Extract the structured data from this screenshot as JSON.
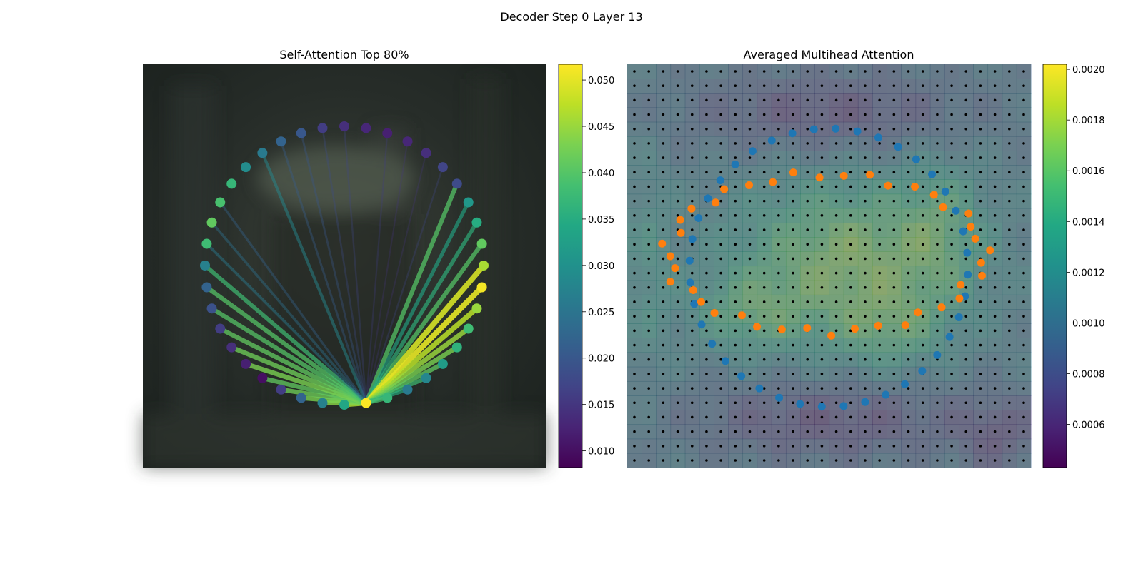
{
  "figure": {
    "title": "Decoder Step 0 Layer 13"
  },
  "chart_data": [
    {
      "type": "scatter",
      "title": "Self-Attention Top 80%",
      "description_points": "40 nodes arranged on a ring; edges drawn from node 9 to the nodes it attends to, coloured and weighted by attention value",
      "colorbar": {
        "min": 0.0082,
        "max": 0.0517,
        "ticks": [
          "0.010",
          "0.015",
          "0.020",
          "0.025",
          "0.030",
          "0.035",
          "0.040",
          "0.045",
          "0.050"
        ],
        "tick_values": [
          0.01,
          0.015,
          0.02,
          0.025,
          0.03,
          0.035,
          0.04,
          0.045,
          0.05
        ],
        "colormap": "viridis"
      },
      "node_values": [
        0.046,
        0.051,
        0.045,
        0.038,
        0.036,
        0.032,
        0.028,
        0.026,
        0.037,
        0.052,
        0.034,
        0.027,
        0.022,
        0.016,
        0.01,
        0.012,
        0.014,
        0.016,
        0.019,
        0.022,
        0.027,
        0.038,
        0.041,
        0.039,
        0.037,
        0.029,
        0.026,
        0.022,
        0.02,
        0.016,
        0.014,
        0.013,
        0.012,
        0.013,
        0.014,
        0.017,
        0.018,
        0.031,
        0.035,
        0.041
      ],
      "edges": [
        {
          "to": 9,
          "value": 0.052
        },
        {
          "to": 10,
          "value": 0.046
        },
        {
          "to": 11,
          "value": 0.044
        },
        {
          "to": 12,
          "value": 0.043
        },
        {
          "to": 13,
          "value": 0.042
        },
        {
          "to": 14,
          "value": 0.041
        },
        {
          "to": 15,
          "value": 0.043
        },
        {
          "to": 16,
          "value": 0.042
        },
        {
          "to": 17,
          "value": 0.041
        },
        {
          "to": 18,
          "value": 0.04
        },
        {
          "to": 19,
          "value": 0.04
        },
        {
          "to": 20,
          "value": 0.038
        },
        {
          "to": 21,
          "value": 0.026
        },
        {
          "to": 22,
          "value": 0.024
        },
        {
          "to": 23,
          "value": 0.022
        },
        {
          "to": 26,
          "value": 0.028
        },
        {
          "to": 27,
          "value": 0.021
        },
        {
          "to": 28,
          "value": 0.02
        },
        {
          "to": 29,
          "value": 0.018
        },
        {
          "to": 30,
          "value": 0.017
        },
        {
          "to": 32,
          "value": 0.016
        },
        {
          "to": 33,
          "value": 0.015
        },
        {
          "to": 34,
          "value": 0.015
        },
        {
          "to": 35,
          "value": 0.017
        },
        {
          "to": 36,
          "value": 0.04
        },
        {
          "to": 37,
          "value": 0.034
        },
        {
          "to": 38,
          "value": 0.036
        },
        {
          "to": 39,
          "value": 0.04
        },
        {
          "to": 0,
          "value": 0.049
        },
        {
          "to": 1,
          "value": 0.05
        },
        {
          "to": 2,
          "value": 0.047
        },
        {
          "to": 3,
          "value": 0.045
        },
        {
          "to": 4,
          "value": 0.043
        },
        {
          "to": 5,
          "value": 0.041
        },
        {
          "to": 6,
          "value": 0.038
        },
        {
          "to": 7,
          "value": 0.035
        },
        {
          "to": 8,
          "value": 0.039
        }
      ]
    },
    {
      "type": "heatmap",
      "title": "Averaged Multihead Attention",
      "colorbar": {
        "min": 0.00043,
        "max": 0.00202,
        "ticks": [
          "0.0006",
          "0.0008",
          "0.0010",
          "0.0012",
          "0.0014",
          "0.0016",
          "0.0018",
          "0.0020"
        ],
        "tick_values": [
          0.0006,
          0.0008,
          0.001,
          0.0012,
          0.0014,
          0.0016,
          0.0018,
          0.002
        ],
        "colormap": "viridis"
      },
      "grid": {
        "rows": 28,
        "cols": 28
      },
      "series": [
        {
          "color": "#1f77b4"
        },
        {
          "color": "#ff7f0e"
        }
      ]
    }
  ],
  "colors": {
    "blue_points": "#1f77b4",
    "orange_points": "#ff7f0e",
    "grid_dots": "#000000"
  }
}
